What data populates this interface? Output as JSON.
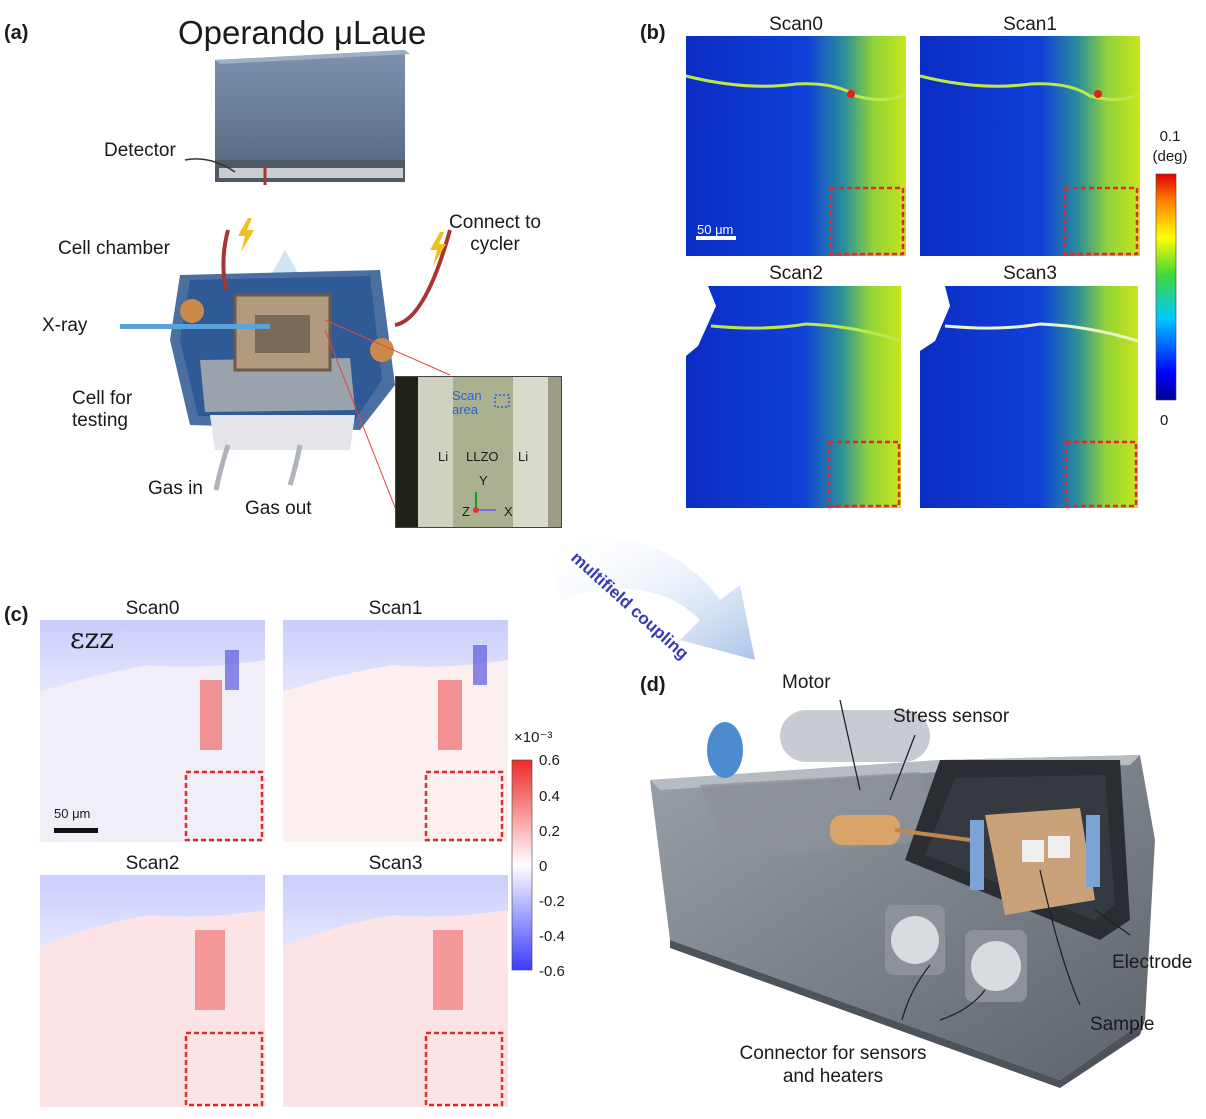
{
  "panel_a": {
    "label": "(a)",
    "title": "Operando μLaue",
    "callouts": {
      "detector": "Detector",
      "cell_chamber": "Cell chamber",
      "xray": "X-ray",
      "cell_testing": "Cell for testing",
      "gas_in": "Gas in",
      "gas_out": "Gas out",
      "connect": "Connect to cycler"
    },
    "inset": {
      "scan_area": "Scan area",
      "li_left": "Li",
      "llzo": "LLZO",
      "li_right": "Li",
      "axis_y": "Y",
      "axis_z": "Z",
      "axis_x": "X"
    }
  },
  "panel_b": {
    "label": "(b)",
    "scans": [
      "Scan0",
      "Scan1",
      "Scan2",
      "Scan3"
    ],
    "scalebar": "50 μm",
    "colorbar": {
      "max": "0.1",
      "unit": "(deg)",
      "min": "0"
    }
  },
  "arrow_text": "multifield coupling",
  "panel_c": {
    "label": "(c)",
    "symbol": "εzz",
    "scans": [
      "Scan0",
      "Scan1",
      "Scan2",
      "Scan3"
    ],
    "scalebar": "50 μm",
    "colorbar": {
      "multiplier": "×10⁻³",
      "ticks": [
        "0.6",
        "0.4",
        "0.2",
        "0",
        "-0.2",
        "-0.4",
        "-0.6"
      ]
    }
  },
  "panel_d": {
    "label": "(d)",
    "callouts": {
      "motor": "Motor",
      "stress": "Stress sensor",
      "electrode": "Electrode",
      "sample": "Sample",
      "connector": "Connector for sensors and heaters"
    }
  }
}
